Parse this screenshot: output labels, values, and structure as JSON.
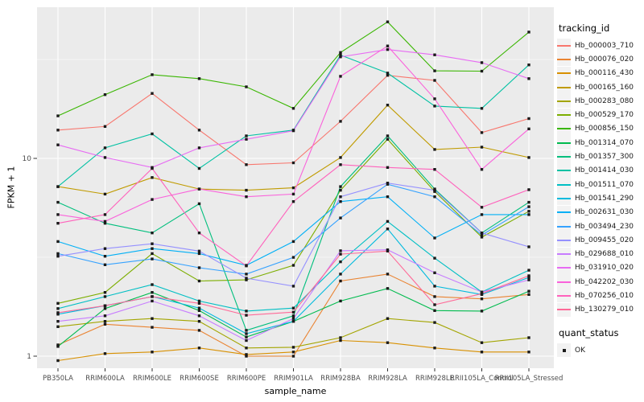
{
  "chart_data": {
    "type": "line",
    "title": "",
    "xlabel": "sample_name",
    "ylabel": "FPKM + 1",
    "y_scale": "log10",
    "ylim": [
      0.9,
      58
    ],
    "y_ticks": [
      {
        "label": "1",
        "value": 1
      },
      {
        "label": "10",
        "value": 10
      }
    ],
    "y_minor_gridlines": [
      3.1623,
      31.623
    ],
    "grid": "white major/minor gridlines on gray panel",
    "legend_position": "right",
    "panel_color": "#EBEBEB",
    "point_shape": "filled-black-square",
    "categories": [
      "PB350LA",
      "RRIM600LA",
      "RRIM600LE",
      "RRIM600SE",
      "RRIM600PE",
      "RRIM901LA",
      "RRIM928BA",
      "RRIM928LA",
      "RRIM928LE",
      "RRII105LA_Control",
      "RRII105LA_Stressed"
    ],
    "series": [
      {
        "name": "Hb_000003_710",
        "color": "#F8766D",
        "values": [
          13.9,
          14.5,
          21.3,
          13.9,
          9.3,
          9.5,
          15.4,
          26.3,
          24.8,
          13.5,
          15.9
        ]
      },
      {
        "name": "Hb_000076_020",
        "color": "#EA8331",
        "values": [
          1.14,
          1.45,
          1.4,
          1.35,
          1.0,
          1.0,
          2.4,
          2.6,
          2.0,
          1.95,
          2.05
        ]
      },
      {
        "name": "Hb_000116_430",
        "color": "#D89000",
        "values": [
          0.95,
          1.03,
          1.05,
          1.1,
          1.02,
          1.05,
          1.2,
          1.17,
          1.1,
          1.05,
          1.05
        ]
      },
      {
        "name": "Hb_000165_160",
        "color": "#C09B00",
        "values": [
          7.2,
          6.6,
          8.0,
          7.0,
          6.9,
          7.1,
          10.1,
          18.6,
          11.1,
          11.4,
          10.1
        ]
      },
      {
        "name": "Hb_000283_080",
        "color": "#A3A500",
        "values": [
          1.41,
          1.5,
          1.55,
          1.5,
          1.1,
          1.11,
          1.24,
          1.55,
          1.48,
          1.17,
          1.24
        ]
      },
      {
        "name": "Hb_000529_170",
        "color": "#7CAE00",
        "values": [
          1.85,
          2.1,
          3.3,
          2.4,
          2.43,
          2.88,
          6.9,
          12.5,
          6.8,
          4.0,
          5.4
        ]
      },
      {
        "name": "Hb_000856_150",
        "color": "#39B600",
        "values": [
          16.4,
          21.0,
          26.5,
          25.3,
          23.0,
          17.9,
          34.3,
          49.0,
          27.7,
          27.6,
          43.5
        ]
      },
      {
        "name": "Hb_001314_070",
        "color": "#00BB4E",
        "values": [
          1.12,
          1.74,
          2.1,
          1.7,
          1.25,
          1.5,
          1.9,
          2.2,
          1.7,
          1.69,
          2.13
        ]
      },
      {
        "name": "Hb_001357_300",
        "color": "#00BF7D",
        "values": [
          6.0,
          4.7,
          4.2,
          5.9,
          1.35,
          1.6,
          7.2,
          13.0,
          7.0,
          4.2,
          6.0
        ]
      },
      {
        "name": "Hb_001414_030",
        "color": "#00C1A3",
        "values": [
          7.2,
          11.3,
          13.3,
          8.9,
          13.0,
          13.9,
          33.3,
          27.0,
          18.4,
          17.9,
          29.7
        ]
      },
      {
        "name": "Hb_001511_070",
        "color": "#00BFC4",
        "values": [
          1.74,
          2.0,
          2.3,
          1.9,
          1.69,
          1.75,
          3.0,
          4.8,
          3.13,
          2.11,
          2.72
        ]
      },
      {
        "name": "Hb_001541_290",
        "color": "#00BADE",
        "values": [
          1.63,
          1.8,
          2.0,
          1.75,
          1.3,
          1.5,
          2.6,
          4.4,
          2.26,
          2.05,
          2.5
        ]
      },
      {
        "name": "Hb_002631_030",
        "color": "#00B0F6",
        "values": [
          3.8,
          3.2,
          3.5,
          3.3,
          2.88,
          3.8,
          6.05,
          6.4,
          3.96,
          5.2,
          5.2
        ]
      },
      {
        "name": "Hb_003494_230",
        "color": "#35A2FF",
        "values": [
          3.3,
          2.9,
          3.1,
          2.8,
          2.6,
          3.16,
          5.0,
          7.4,
          6.4,
          4.1,
          5.7
        ]
      },
      {
        "name": "Hb_009455_020",
        "color": "#9590FF",
        "values": [
          3.2,
          3.5,
          3.7,
          3.4,
          2.48,
          2.26,
          6.4,
          7.5,
          6.9,
          4.2,
          3.57
        ]
      },
      {
        "name": "Hb_029688_010",
        "color": "#C77CFF",
        "values": [
          1.5,
          1.6,
          1.9,
          1.6,
          1.2,
          1.55,
          3.41,
          3.45,
          2.64,
          2.11,
          2.43
        ]
      },
      {
        "name": "Hb_031910_020",
        "color": "#E76BF3",
        "values": [
          11.7,
          10.1,
          9.0,
          11.3,
          12.5,
          13.8,
          32.6,
          35.5,
          33.4,
          30.5,
          25.3
        ]
      },
      {
        "name": "Hb_042202_030",
        "color": "#FA62DB",
        "values": [
          5.2,
          4.8,
          6.2,
          7.0,
          6.4,
          6.6,
          26.0,
          37.0,
          20.0,
          8.8,
          14.1
        ]
      },
      {
        "name": "Hb_070256_010",
        "color": "#FF62BC",
        "values": [
          4.7,
          5.2,
          8.9,
          4.2,
          2.86,
          6.05,
          9.3,
          9.0,
          8.8,
          5.66,
          6.95
        ]
      },
      {
        "name": "Hb_130279_010",
        "color": "#FF6A98",
        "values": [
          1.66,
          1.8,
          2.0,
          1.85,
          1.61,
          1.67,
          3.28,
          3.4,
          1.82,
          2.07,
          2.55
        ]
      }
    ],
    "legends": {
      "tracking": {
        "title": "tracking_id"
      },
      "quant": {
        "title": "quant_status",
        "items": [
          {
            "label": "OK"
          }
        ]
      }
    }
  }
}
